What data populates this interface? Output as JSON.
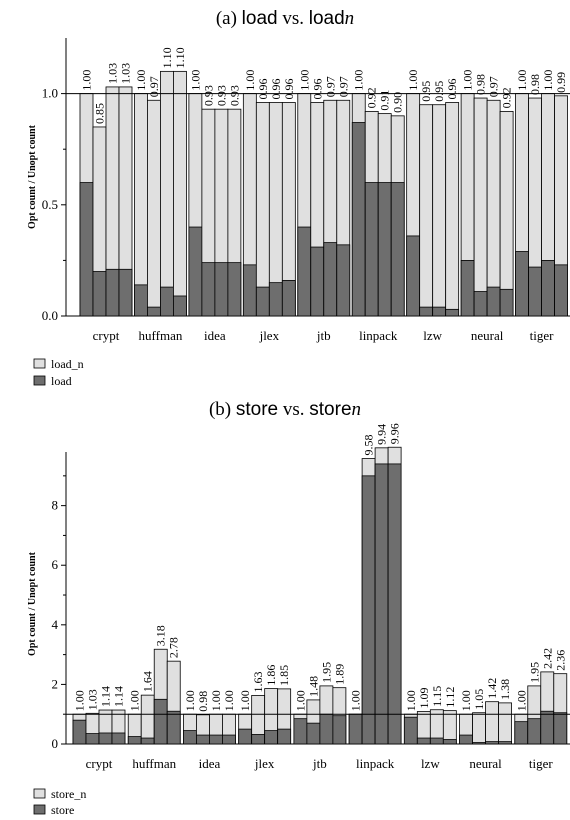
{
  "chart_data": [
    {
      "type": "bar",
      "title_prefix": "(a)",
      "title_a": "load",
      "title_mid": "vs.",
      "title_b": "load",
      "title_b_suffix": "n",
      "ylabel": "Opt count / Unopt count",
      "xlabel": "",
      "ylim": [
        0,
        1.25
      ],
      "yticks": [
        "0.0",
        "0.5",
        "1.0"
      ],
      "ytick_values": [
        0,
        0.5,
        1.0
      ],
      "reference_line": 1.0,
      "categories": [
        "crypt",
        "huffman",
        "idea",
        "jlex",
        "jtb",
        "linpack",
        "lzw",
        "neural",
        "tiger"
      ],
      "bars_per_category": 4,
      "series": [
        {
          "name": "load_n",
          "color": "#e0e0e0",
          "values": [
            [
              1.0,
              0.85,
              1.03,
              1.03
            ],
            [
              1.0,
              0.97,
              1.1,
              1.1
            ],
            [
              1.0,
              0.93,
              0.93,
              0.93
            ],
            [
              1.0,
              0.96,
              0.96,
              0.96
            ],
            [
              1.0,
              0.96,
              0.97,
              0.97
            ],
            [
              1.0,
              0.92,
              0.91,
              0.9
            ],
            [
              1.0,
              0.95,
              0.95,
              0.96
            ],
            [
              1.0,
              0.98,
              0.97,
              0.92
            ],
            [
              1.0,
              0.98,
              1.0,
              0.99
            ]
          ]
        },
        {
          "name": "load",
          "color": "#6e6e6e",
          "values": [
            [
              0.6,
              0.2,
              0.21,
              0.21
            ],
            [
              0.14,
              0.04,
              0.13,
              0.09
            ],
            [
              0.4,
              0.24,
              0.24,
              0.24
            ],
            [
              0.23,
              0.13,
              0.15,
              0.16
            ],
            [
              0.4,
              0.31,
              0.33,
              0.32
            ],
            [
              0.87,
              0.6,
              0.6,
              0.6
            ],
            [
              0.36,
              0.04,
              0.04,
              0.03
            ],
            [
              0.25,
              0.11,
              0.13,
              0.12
            ],
            [
              0.29,
              0.22,
              0.25,
              0.23
            ]
          ]
        }
      ],
      "labels": [
        [
          "1.00",
          "0.85",
          "1.03",
          "1.03"
        ],
        [
          "1.00",
          "0.97",
          "1.10",
          "1.10"
        ],
        [
          "1.00",
          "0.93",
          "0.93",
          "0.93"
        ],
        [
          "1.00",
          "0.96",
          "0.96",
          "0.96"
        ],
        [
          "1.00",
          "0.96",
          "0.97",
          "0.97"
        ],
        [
          "1.00",
          "0.92",
          "0.91",
          "0.90"
        ],
        [
          "1.00",
          "0.95",
          "0.95",
          "0.96"
        ],
        [
          "1.00",
          "0.98",
          "0.97",
          "0.92"
        ],
        [
          "1.00",
          "0.98",
          "1.00",
          "0.99"
        ]
      ],
      "legend": [
        "load_n",
        "load"
      ],
      "grid": false
    },
    {
      "type": "bar",
      "title_prefix": "(b)",
      "title_a": "store",
      "title_mid": "vs.",
      "title_b": "store",
      "title_b_suffix": "n",
      "ylabel": "Opt count / Unopt count",
      "xlabel": "",
      "ylim": [
        0,
        9.8
      ],
      "yticks": [
        "0",
        "2",
        "4",
        "6",
        "8"
      ],
      "ytick_values": [
        0,
        2,
        4,
        6,
        8
      ],
      "reference_line": 1.0,
      "categories": [
        "crypt",
        "huffman",
        "idea",
        "jlex",
        "jtb",
        "linpack",
        "lzw",
        "neural",
        "tiger"
      ],
      "bars_per_category": 4,
      "series": [
        {
          "name": "store_n",
          "color": "#e0e0e0",
          "values": [
            [
              1.0,
              1.03,
              1.14,
              1.14
            ],
            [
              1.0,
              1.64,
              3.18,
              2.78
            ],
            [
              1.0,
              0.98,
              1.0,
              1.0
            ],
            [
              1.0,
              1.63,
              1.86,
              1.85
            ],
            [
              1.0,
              1.48,
              1.95,
              1.89
            ],
            [
              1.0,
              9.58,
              9.94,
              9.96
            ],
            [
              1.0,
              1.09,
              1.15,
              1.12
            ],
            [
              1.0,
              1.05,
              1.42,
              1.38
            ],
            [
              1.0,
              1.95,
              2.42,
              2.36
            ]
          ]
        },
        {
          "name": "store",
          "color": "#6e6e6e",
          "values": [
            [
              0.8,
              0.35,
              0.37,
              0.37
            ],
            [
              0.25,
              0.2,
              1.5,
              1.1
            ],
            [
              0.45,
              0.3,
              0.3,
              0.3
            ],
            [
              0.5,
              0.32,
              0.45,
              0.5
            ],
            [
              0.85,
              0.7,
              1.0,
              0.95
            ],
            [
              1.0,
              9.0,
              9.4,
              9.4
            ],
            [
              0.9,
              0.2,
              0.2,
              0.15
            ],
            [
              0.3,
              0.05,
              0.08,
              0.08
            ],
            [
              0.75,
              0.85,
              1.1,
              1.05
            ]
          ]
        }
      ],
      "labels": [
        [
          "1.00",
          "1.03",
          "1.14",
          "1.14"
        ],
        [
          "1.00",
          "1.64",
          "3.18",
          "2.78"
        ],
        [
          "1.00",
          "0.98",
          "1.00",
          "1.00"
        ],
        [
          "1.00",
          "1.63",
          "1.86",
          "1.85"
        ],
        [
          "1.00",
          "1.48",
          "1.95",
          "1.89"
        ],
        [
          "1.00",
          "9.58",
          "9.94",
          "9.96"
        ],
        [
          "1.00",
          "1.09",
          "1.15",
          "1.12"
        ],
        [
          "1.00",
          "1.05",
          "1.42",
          "1.38"
        ],
        [
          "1.00",
          "1.95",
          "2.42",
          "2.36"
        ]
      ],
      "legend": [
        "store_n",
        "store"
      ],
      "grid": false
    }
  ]
}
